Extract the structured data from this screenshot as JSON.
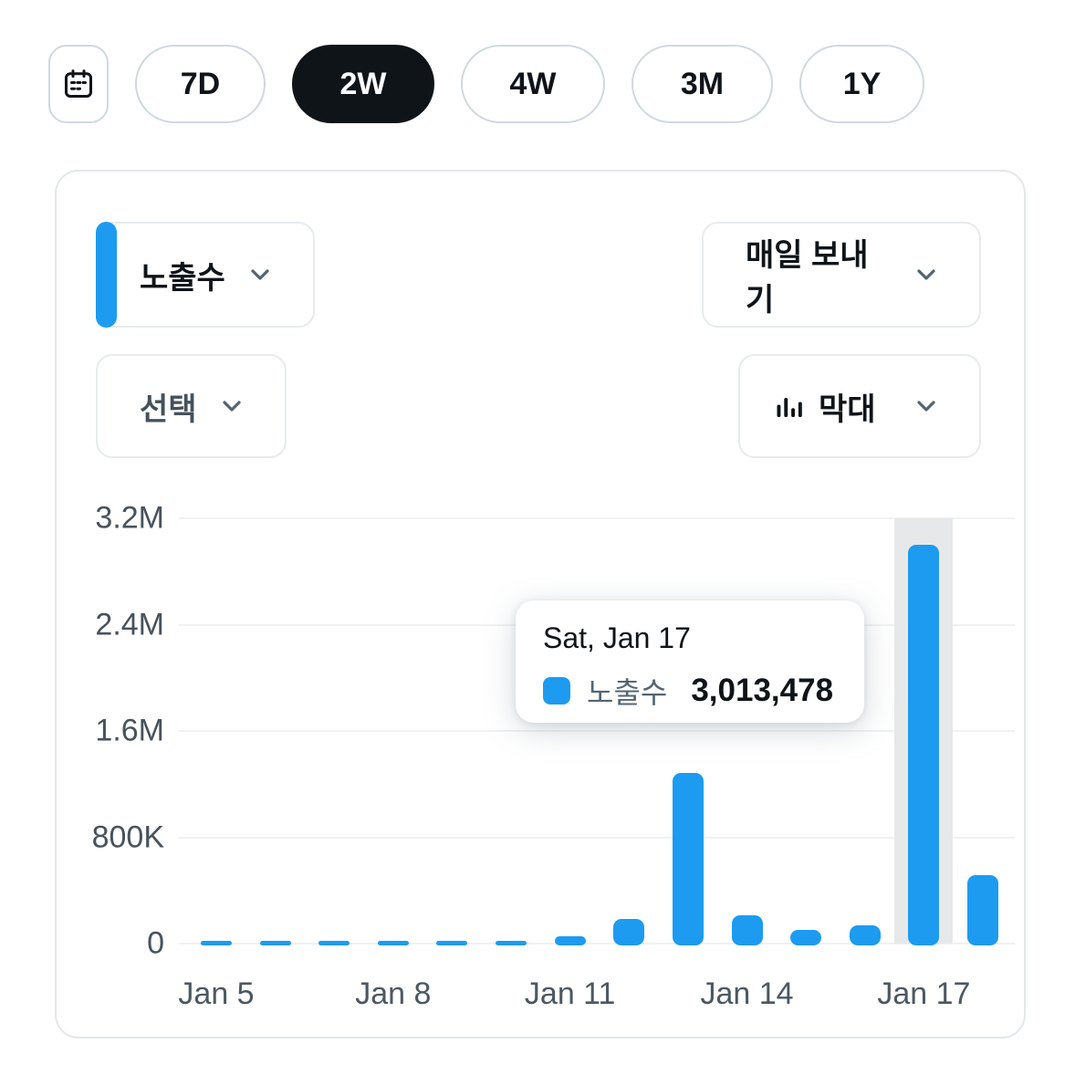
{
  "toolbar": {
    "calendar_button": {
      "icon": "calendar-icon"
    },
    "periods": [
      {
        "label": "7D",
        "active": false
      },
      {
        "label": "2W",
        "active": true
      },
      {
        "label": "4W",
        "active": false
      },
      {
        "label": "3M",
        "active": false
      },
      {
        "label": "1Y",
        "active": false
      }
    ]
  },
  "card": {
    "metric_dropdown": {
      "label": "노출수",
      "accent_color": "#1d9bf0"
    },
    "frequency_dropdown": {
      "label": "매일 보내기"
    },
    "select_dropdown": {
      "label": "선택"
    },
    "chart_type_dropdown": {
      "label": "막대",
      "icon": "bar-chart-icon"
    }
  },
  "tooltip": {
    "title": "Sat, Jan 17",
    "series_label": "노출수",
    "value": "3,013,478"
  },
  "chart_data": {
    "type": "bar",
    "title": "",
    "series_name": "노출수",
    "x": [
      "Jan 5",
      "Jan 6",
      "Jan 7",
      "Jan 8",
      "Jan 9",
      "Jan 10",
      "Jan 11",
      "Jan 12",
      "Jan 13",
      "Jan 14",
      "Jan 15",
      "Jan 16",
      "Jan 17",
      "Jan 18"
    ],
    "values": [
      2000,
      2000,
      2500,
      3000,
      3000,
      6000,
      70000,
      200000,
      1300000,
      230000,
      120000,
      150000,
      3013478,
      530000
    ],
    "ylim": [
      0,
      3200000
    ],
    "yticks": [
      {
        "value": 0,
        "label": "0"
      },
      {
        "value": 800000,
        "label": "800K"
      },
      {
        "value": 1600000,
        "label": "1.6M"
      },
      {
        "value": 2400000,
        "label": "2.4M"
      },
      {
        "value": 3200000,
        "label": "3.2M"
      }
    ],
    "xticks": [
      {
        "index": 0,
        "label": "Jan 5"
      },
      {
        "index": 3,
        "label": "Jan 8"
      },
      {
        "index": 6,
        "label": "Jan 11"
      },
      {
        "index": 9,
        "label": "Jan 14"
      },
      {
        "index": 12,
        "label": "Jan 17"
      }
    ],
    "highlighted_index": 12,
    "grid": true,
    "legend_position": "tooltip",
    "bar_color": "#1d9bf0",
    "highlight_band_color": "#e7e8e9",
    "grid_color": "#eff1f3"
  },
  "colors": {
    "accent_blue": "#1d9bf0",
    "active_pill_bg": "#0f1419",
    "text_dark": "#0f1419",
    "text_gray": "#536471",
    "border_gray": "#cfd9de"
  }
}
